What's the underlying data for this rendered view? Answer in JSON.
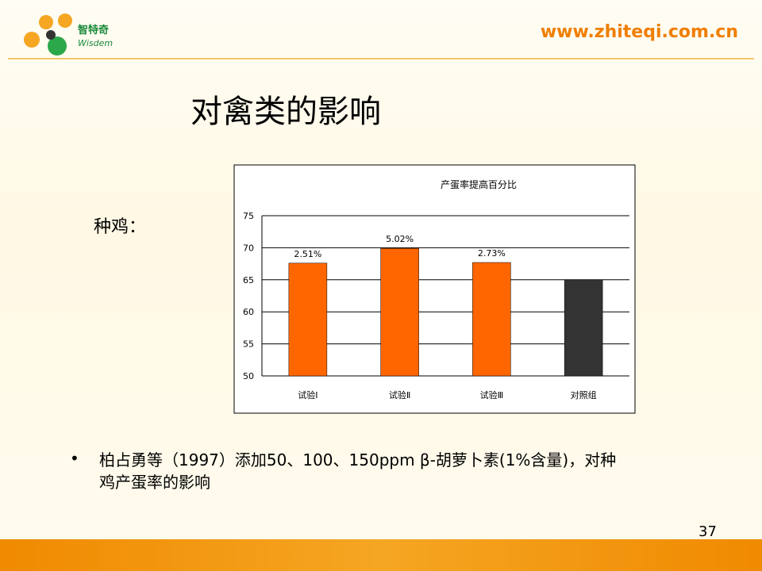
{
  "header": {
    "logo_name": "智特奇",
    "logo_sub": "Wisdem",
    "url": "www.zhiteqi.com.cn"
  },
  "title": "对禽类的影响",
  "label": "种鸡：",
  "chart_data": {
    "type": "bar",
    "title": "产蛋率提高百分比",
    "categories": [
      "试验Ⅰ",
      "试验Ⅱ",
      "试验Ⅲ",
      "对照组"
    ],
    "values": [
      67.6,
      69.9,
      67.7,
      65.0
    ],
    "annotations": [
      "2.51%",
      "5.02%",
      "2.73%",
      null
    ],
    "colors": [
      "#ff6600",
      "#ff6600",
      "#ff6600",
      "#333333"
    ],
    "ylim": [
      50,
      75
    ],
    "yticks": [
      50,
      55,
      60,
      65,
      70,
      75
    ],
    "grid": true
  },
  "bullet": "柏占勇等（1997）添加50、100、150ppm β-胡萝卜素(1%含量)，对种鸡产蛋率的影响",
  "page_number": "37"
}
